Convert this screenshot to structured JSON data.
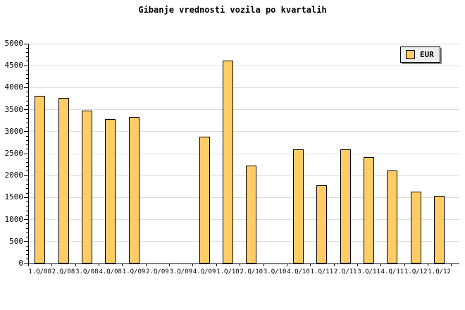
{
  "title": "Gibanje vrednosti vozila po kvartalih",
  "legend": {
    "position": "top-right",
    "items": [
      {
        "label": "EUR",
        "swatch_color": "#ffcc66"
      }
    ]
  },
  "colors": {
    "background": "#ffffff",
    "bar_fill": "#ffcc66",
    "bar_border": "#000000",
    "gridline": "#dcdcdc",
    "axis": "#000000",
    "text": "#000000",
    "legend_bg": "#eeeeee",
    "legend_shadow": "#8c8c8c"
  },
  "chart_data": {
    "type": "bar",
    "title": "Gibanje vrednosti vozila po kvartalih",
    "xlabel": "",
    "ylabel": "",
    "categories": [
      "1.Q/08",
      "2.Q/08",
      "3.Q/08",
      "4.Q/08",
      "1.Q/09",
      "2.Q/09",
      "3.Q/09",
      "4.Q/09",
      "1.Q/10",
      "2.Q/10",
      "3.Q/10",
      "4.Q/10",
      "1.Q/11",
      "2.Q/11",
      "3.Q/11",
      "4.Q/11",
      "1.Q/12",
      "1.Q/12"
    ],
    "series": [
      {
        "name": "EUR",
        "values": [
          3820,
          3760,
          3480,
          3290,
          3340,
          null,
          null,
          2890,
          4610,
          2220,
          null,
          2590,
          1780,
          2590,
          2420,
          2110,
          1640,
          1540
        ]
      }
    ],
    "ylim": [
      0,
      5000
    ],
    "ytick_step": 500,
    "ytick_minor_step": 100,
    "ytick_labels": [
      "0",
      "500",
      "1000",
      "1500",
      "2000",
      "2500",
      "3000",
      "3500",
      "4000",
      "4500",
      "5000"
    ],
    "grid": "horizontal",
    "legend_position": "top-right",
    "bar_color": "#ffcc66",
    "bar_border_color": "#000000"
  }
}
